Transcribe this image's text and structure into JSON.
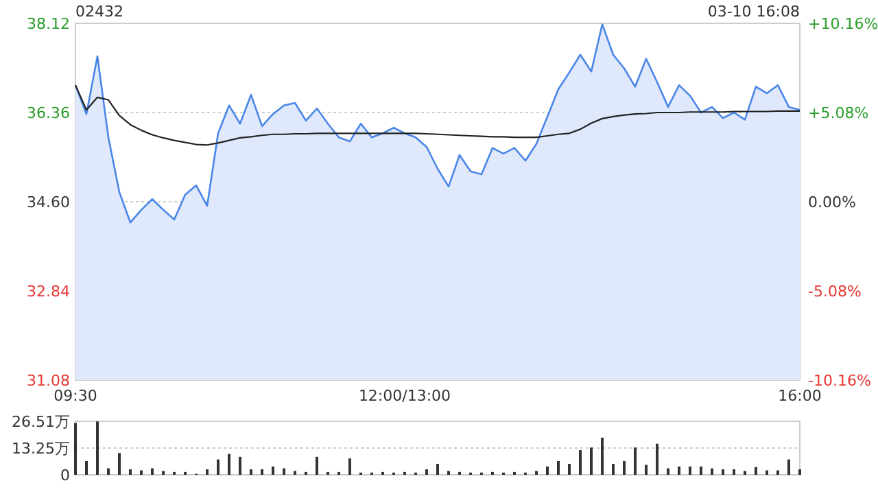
{
  "chart_data": [
    {
      "type": "line",
      "title": "02432",
      "annotations": [
        "03-10 16:08"
      ],
      "categories": [
        "09:30",
        null,
        null,
        null,
        null,
        null,
        null,
        null,
        null,
        null,
        null,
        null,
        null,
        null,
        null,
        null,
        null,
        null,
        null,
        null,
        null,
        null,
        null,
        null,
        null,
        null,
        null,
        null,
        null,
        null,
        "12:00/13:00",
        null,
        null,
        null,
        null,
        null,
        null,
        null,
        null,
        null,
        null,
        null,
        null,
        null,
        null,
        null,
        null,
        null,
        null,
        null,
        null,
        null,
        null,
        null,
        null,
        null,
        null,
        null,
        null,
        null,
        null,
        null,
        null,
        null,
        null,
        null,
        "16:00"
      ],
      "ylim": [
        31.08,
        38.12
      ],
      "yticks": [
        31.08,
        32.84,
        {
          "value": 34.6,
          "label": "34.60"
        },
        36.36,
        38.12
      ],
      "y2lim": [
        -10.16,
        10.16
      ],
      "y2ticks": [
        {
          "value": -10.16,
          "label": "-10.16%"
        },
        {
          "value": -5.08,
          "label": "-5.08%"
        },
        {
          "value": 0,
          "label": "0.00%"
        },
        {
          "value": 5.08,
          "label": "+5.08%"
        },
        {
          "value": 10.16,
          "label": "+10.16%"
        }
      ],
      "grid": "y",
      "series": [
        {
          "type": "area",
          "color": "#4a86e8",
          "values": [
            36.9,
            36.33,
            37.47,
            35.87,
            34.79,
            34.19,
            34.44,
            34.65,
            34.44,
            34.25,
            34.74,
            34.92,
            34.52,
            35.95,
            36.5,
            36.14,
            36.71,
            36.09,
            36.33,
            36.5,
            36.55,
            36.2,
            36.44,
            36.14,
            35.87,
            35.79,
            36.14,
            35.87,
            35.95,
            36.06,
            35.95,
            35.87,
            35.68,
            35.25,
            34.9,
            35.52,
            35.2,
            35.14,
            35.66,
            35.55,
            35.66,
            35.41,
            35.74,
            36.28,
            36.82,
            37.15,
            37.5,
            37.17,
            38.1,
            37.5,
            37.23,
            36.87,
            37.42,
            36.96,
            36.47,
            36.9,
            36.69,
            36.36,
            36.47,
            36.25,
            36.36,
            36.22,
            36.87,
            36.74,
            36.9,
            36.47,
            36.41
          ]
        },
        {
          "type": "line",
          "color": "#222222",
          "values": [
            36.9,
            36.41,
            36.66,
            36.61,
            36.3,
            36.12,
            36.01,
            35.92,
            35.86,
            35.81,
            35.77,
            35.73,
            35.72,
            35.76,
            35.81,
            35.86,
            35.88,
            35.91,
            35.93,
            35.93,
            35.94,
            35.94,
            35.95,
            35.95,
            35.95,
            35.95,
            35.95,
            35.95,
            35.95,
            35.95,
            35.95,
            35.95,
            35.94,
            35.93,
            35.92,
            35.91,
            35.9,
            35.89,
            35.88,
            35.88,
            35.87,
            35.87,
            35.87,
            35.9,
            35.93,
            35.95,
            36.03,
            36.15,
            36.24,
            36.28,
            36.31,
            36.33,
            36.34,
            36.36,
            36.36,
            36.36,
            36.37,
            36.37,
            36.37,
            36.37,
            36.38,
            36.38,
            36.38,
            36.38,
            36.39,
            36.39,
            36.39
          ]
        }
      ]
    },
    {
      "type": "bar",
      "tick_labels": "y",
      "grid": "y",
      "categories": [
        null,
        null,
        null,
        null,
        null,
        null,
        null,
        null,
        null,
        null,
        null,
        null,
        null,
        null,
        null,
        null,
        null,
        null,
        null,
        null,
        null,
        null,
        null,
        null,
        null,
        null,
        null,
        null,
        null,
        null,
        null,
        null,
        null,
        null,
        null,
        null,
        null,
        null,
        null,
        null,
        null,
        null,
        null,
        null,
        null,
        null,
        null,
        null,
        null,
        null,
        null,
        null,
        null,
        null,
        null,
        null,
        null,
        null,
        null,
        null,
        null,
        null,
        null,
        null,
        null,
        null,
        null
      ],
      "ylim": [
        0,
        26.51
      ],
      "yticks": [
        {
          "value": 0,
          "label": "0"
        },
        {
          "value": 13.25,
          "label": "13.25万"
        },
        {
          "value": 26.51,
          "label": "26.51万"
        }
      ],
      "series": [
        {
          "color": "#333333",
          "values": [
            25.7,
            6.8,
            26.4,
            3.2,
            10.8,
            2.7,
            2.2,
            3.2,
            1.9,
            1.4,
            1.4,
            0.5,
            2.7,
            7.6,
            10.3,
            8.9,
            2.7,
            2.7,
            4.1,
            3.2,
            1.9,
            1.4,
            8.9,
            1.4,
            1.4,
            8.1,
            1.1,
            1.1,
            1.4,
            1.1,
            1.4,
            1.1,
            2.7,
            5.4,
            1.9,
            1.4,
            1.1,
            1.1,
            1.4,
            1.1,
            1.4,
            1.1,
            1.9,
            4.1,
            6.8,
            5.4,
            12.2,
            13.5,
            18.4,
            5.4,
            6.8,
            13.5,
            4.9,
            15.4,
            3.2,
            4.1,
            4.1,
            4.1,
            3.2,
            2.7,
            2.7,
            1.9,
            3.8,
            2.2,
            2.2,
            7.6,
            2.7
          ]
        }
      ]
    }
  ]
}
